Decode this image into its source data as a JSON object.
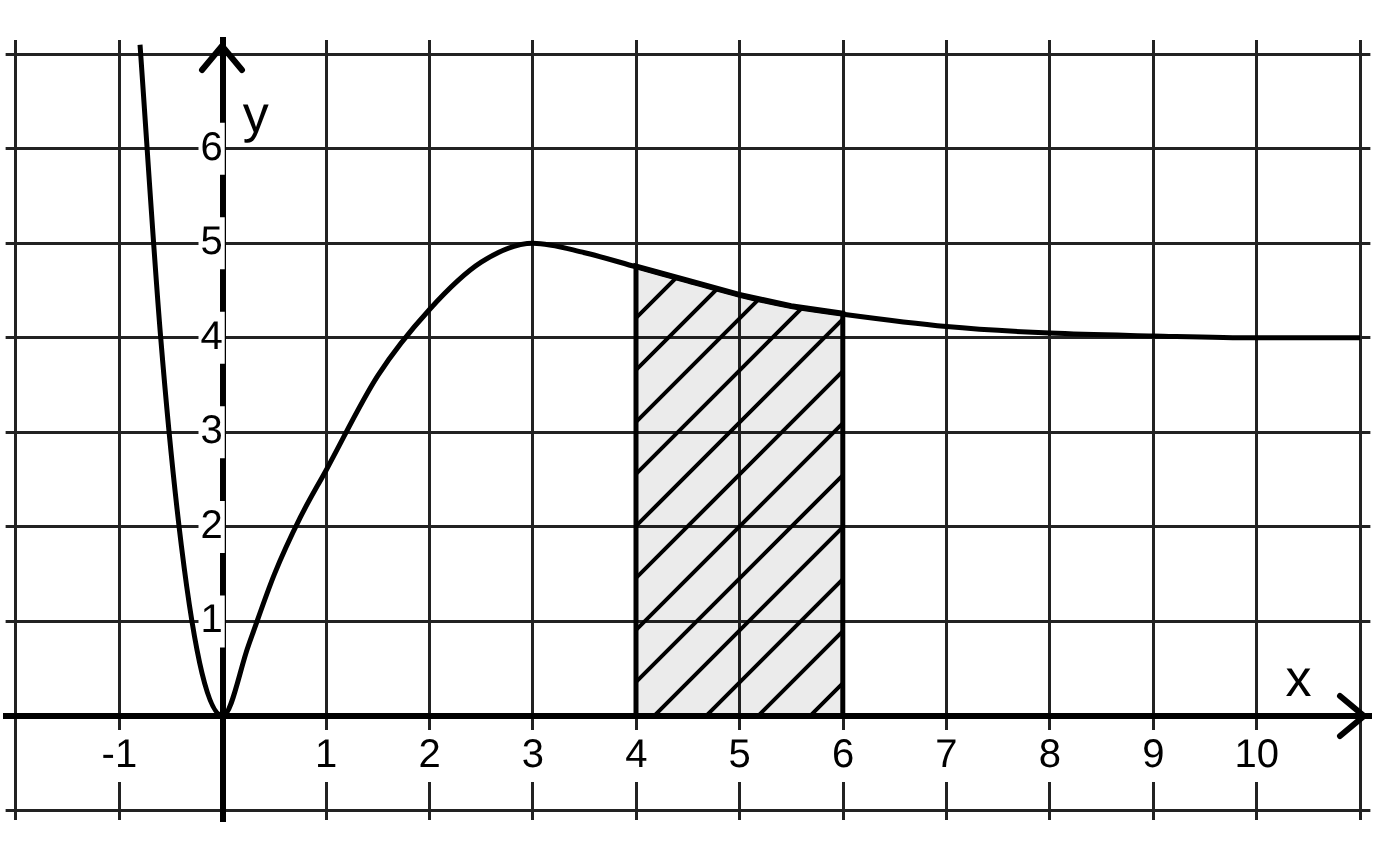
{
  "chart_data": {
    "type": "line",
    "xlabel": "x",
    "ylabel": "y",
    "series": [
      {
        "color": "#000000",
        "x": [
          -0.8,
          -0.6,
          -0.4,
          -0.2,
          0,
          0.25,
          0.5,
          0.75,
          1,
          1.5,
          2,
          2.5,
          3,
          3.5,
          4,
          4.5,
          5,
          5.5,
          6,
          7,
          8,
          9,
          10,
          11
        ],
        "values": [
          7.1,
          4.0,
          1.8,
          0.45,
          0,
          0.75,
          1.5,
          2.1,
          2.6,
          3.6,
          4.3,
          4.8,
          5,
          4.9,
          4.75,
          4.6,
          4.45,
          4.33,
          4.25,
          4.12,
          4.05,
          4.02,
          4.0,
          4.0
        ]
      },
      {
        "type": "area",
        "color": "#000000",
        "x": [
          4,
          4.5,
          5,
          5.5,
          6
        ],
        "values": [
          4.75,
          4.6,
          4.45,
          4.33,
          4.25
        ]
      }
    ],
    "xlim": [
      -2.1,
      11.1
    ],
    "ylim": [
      -1.1,
      7.15
    ],
    "xticks": [
      {
        "value": -2,
        "label": null
      },
      -1,
      {
        "value": 0,
        "label": null
      },
      1,
      2,
      3,
      4,
      5,
      6,
      7,
      8,
      9,
      10,
      {
        "value": 11,
        "label": null
      }
    ],
    "yticks": [
      {
        "value": -1,
        "label": null
      },
      {
        "value": 0,
        "label": null
      },
      1,
      2,
      3,
      4,
      5,
      6,
      {
        "value": 7,
        "label": null
      }
    ],
    "grid": true,
    "legend": false,
    "marker": "none",
    "line_style": "solid"
  }
}
